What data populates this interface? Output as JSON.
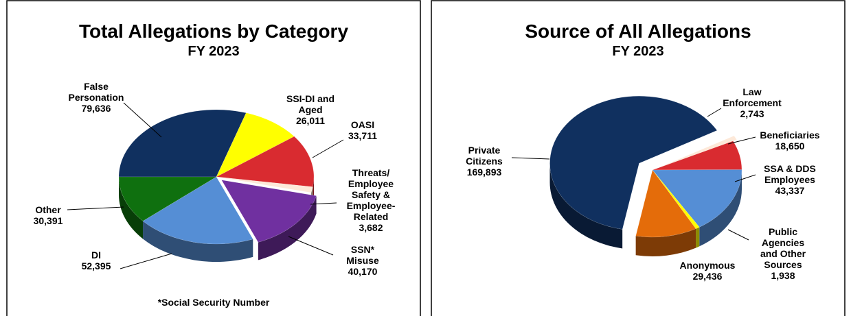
{
  "chart_data": [
    {
      "type": "pie",
      "title": "Total Allegations by Category",
      "subtitle": "FY 2023",
      "categories": [
        "False Personation",
        "SSI-DI and Aged",
        "OASI",
        "Threats/ Employee Safety & Employee-Related",
        "SSN* Misuse",
        "DI",
        "Other"
      ],
      "values": [
        79636,
        26011,
        33711,
        3682,
        40170,
        52395,
        30391
      ],
      "value_labels": [
        "79,636",
        "26,011",
        "33,711",
        "3,682",
        "40,170",
        "52,395",
        "30,391"
      ],
      "colors": [
        "#10305f",
        "#ffff00",
        "#d92b30",
        "#fde9d9",
        "#7030a0",
        "#558ed5",
        "#0f700f"
      ],
      "footnote": "*Social Security Number"
    },
    {
      "type": "pie",
      "title": "Source of All Allegations",
      "subtitle": "FY 2023",
      "categories": [
        "Private Citizens",
        "Law Enforcement",
        "Beneficiaries",
        "SSA & DDS Employees",
        "Public Agencies and Other Sources",
        "Anonymous"
      ],
      "values": [
        169893,
        2743,
        18650,
        43337,
        1938,
        29436
      ],
      "value_labels": [
        "169,893",
        "2,743",
        "18,650",
        "43,337",
        "1,938",
        "29,436"
      ],
      "colors": [
        "#10305f",
        "#fde9d9",
        "#d92b30",
        "#558ed5",
        "#ffff00",
        "#e46c0a"
      ]
    }
  ]
}
